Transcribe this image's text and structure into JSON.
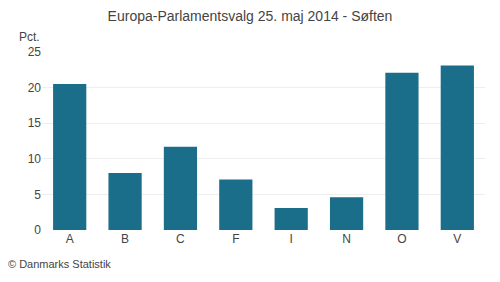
{
  "chart_data": {
    "type": "bar",
    "title": "Europa-Parlamentsvalg 25. maj 2014 - Søften",
    "categories": [
      "A",
      "B",
      "C",
      "F",
      "I",
      "N",
      "O",
      "V"
    ],
    "values": [
      20.5,
      8.0,
      11.7,
      7.1,
      3.1,
      4.6,
      22.1,
      23.1
    ],
    "color": "#1a6e8a",
    "ylabel": "Pct.",
    "annotations": [
      "© Danmarks Statistik"
    ],
    "ylim": [
      0,
      25
    ],
    "yticks": [
      0,
      5,
      10,
      15,
      20,
      25
    ],
    "grid": true
  }
}
